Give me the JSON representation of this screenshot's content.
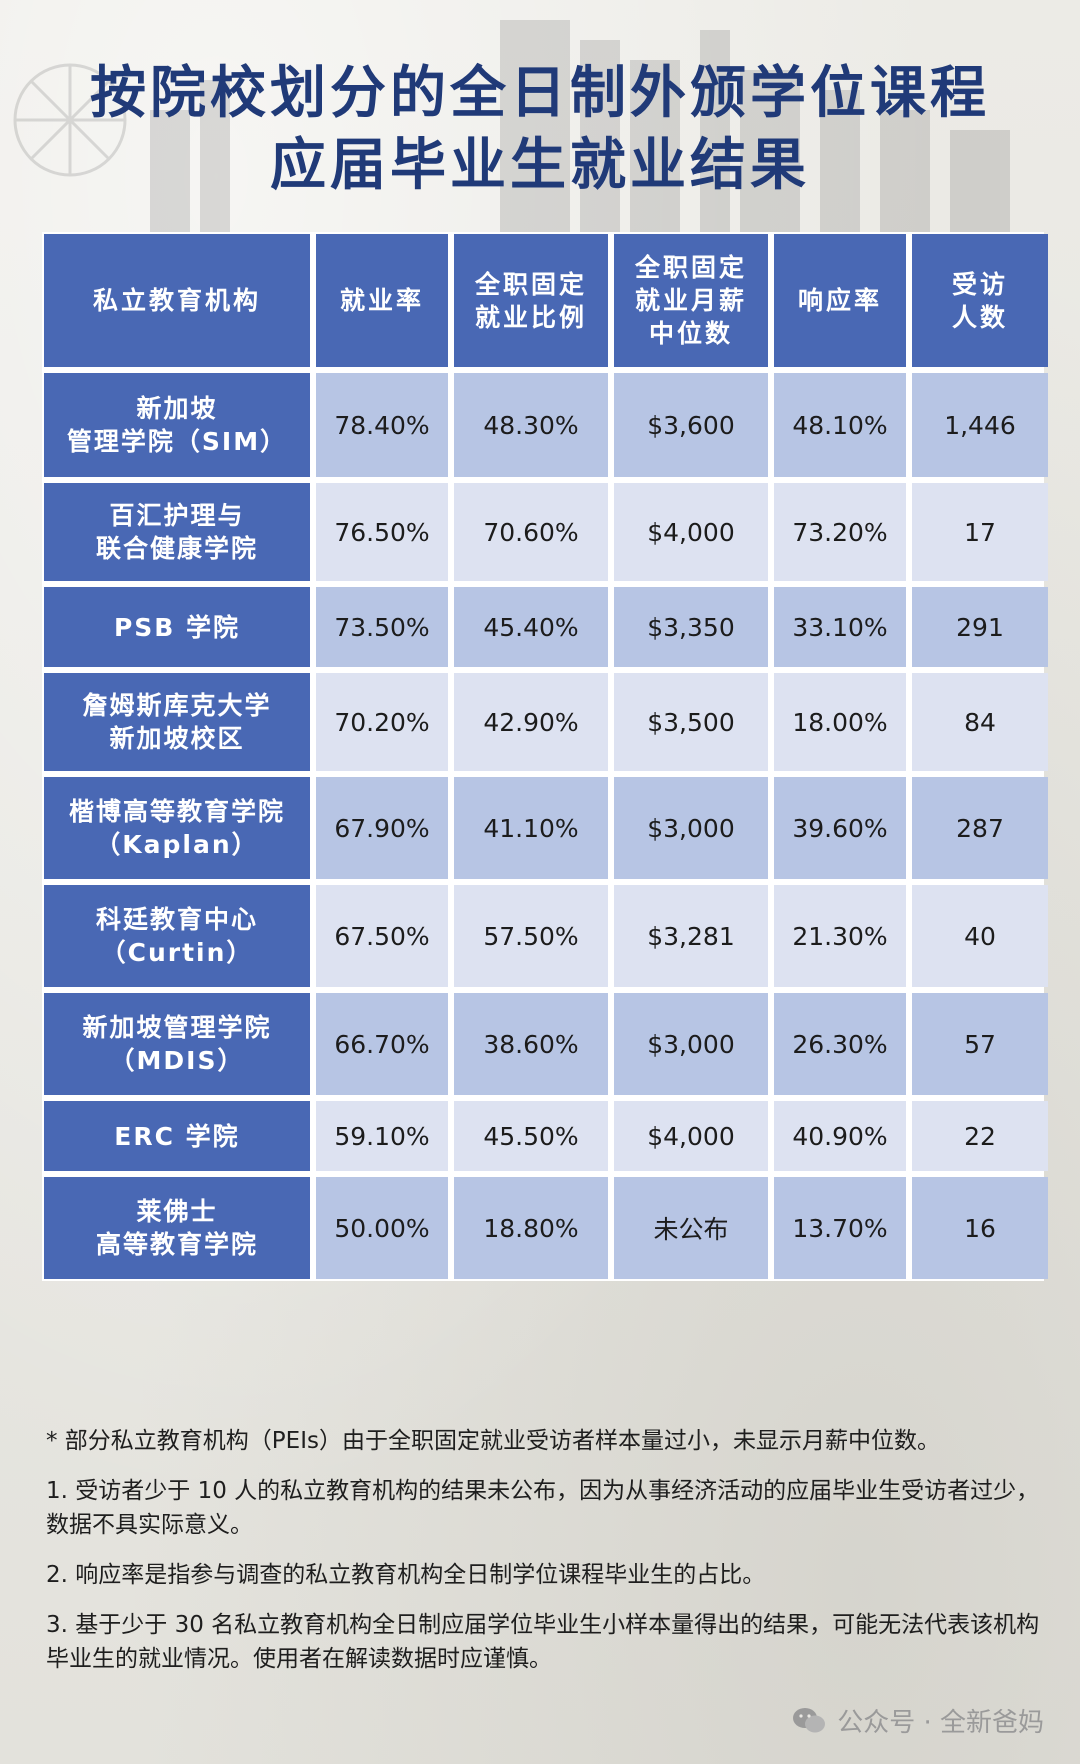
{
  "title": {
    "line1": "按院校划分的全日制外颁学位课程",
    "line2": "应届毕业生就业结果"
  },
  "table": {
    "headers": [
      "私立教育机构",
      "就业率",
      "全职固定\n就业比例",
      "全职固定\n就业月薪\n中位数",
      "响应率",
      "受访\n人数"
    ],
    "rows": [
      [
        "新加坡\n管理学院（SIM）",
        "78.40%",
        "48.30%",
        "$3,600",
        "48.10%",
        "1,446"
      ],
      [
        "百汇护理与\n联合健康学院",
        "76.50%",
        "70.60%",
        "$4,000",
        "73.20%",
        "17"
      ],
      [
        "PSB 学院",
        "73.50%",
        "45.40%",
        "$3,350",
        "33.10%",
        "291"
      ],
      [
        "詹姆斯库克大学\n新加坡校区",
        "70.20%",
        "42.90%",
        "$3,500",
        "18.00%",
        "84"
      ],
      [
        "楷博高等教育学院\n（Kaplan）",
        "67.90%",
        "41.10%",
        "$3,000",
        "39.60%",
        "287"
      ],
      [
        "科廷教育中心\n（Curtin）",
        "67.50%",
        "57.50%",
        "$3,281",
        "21.30%",
        "40"
      ],
      [
        "新加坡管理学院\n（MDIS）",
        "66.70%",
        "38.60%",
        "$3,000",
        "26.30%",
        "57"
      ],
      [
        "ERC 学院",
        "59.10%",
        "45.50%",
        "$4,000",
        "40.90%",
        "22"
      ],
      [
        "莱佛士\n高等教育学院",
        "50.00%",
        "18.80%",
        "未公布",
        "13.70%",
        "16"
      ]
    ]
  },
  "notes": [
    "* 部分私立教育机构（PEIs）由于全职固定就业受访者样本量过小，未显示月薪中位数。",
    "1. 受访者少于 10 人的私立教育机构的结果未公布，因为从事经济活动的应届毕业生受访者过少，数据不具实际意义。",
    "2. 响应率是指参与调查的私立教育机构全日制学位课程毕业生的占比。",
    "3. 基于少于 30 名私立教育机构全日制应届学位毕业生小样本量得出的结果，可能无法代表该机构毕业生的就业情况。使用者在解读数据时应谨慎。"
  ],
  "watermark": {
    "icon": "wechat-icon",
    "text": "公众号 · 全新爸妈"
  },
  "colors": {
    "title": "#203a78",
    "header_bg": "#4968b4",
    "row_dark": "#b7c5e4",
    "row_light": "#dde2f1"
  }
}
